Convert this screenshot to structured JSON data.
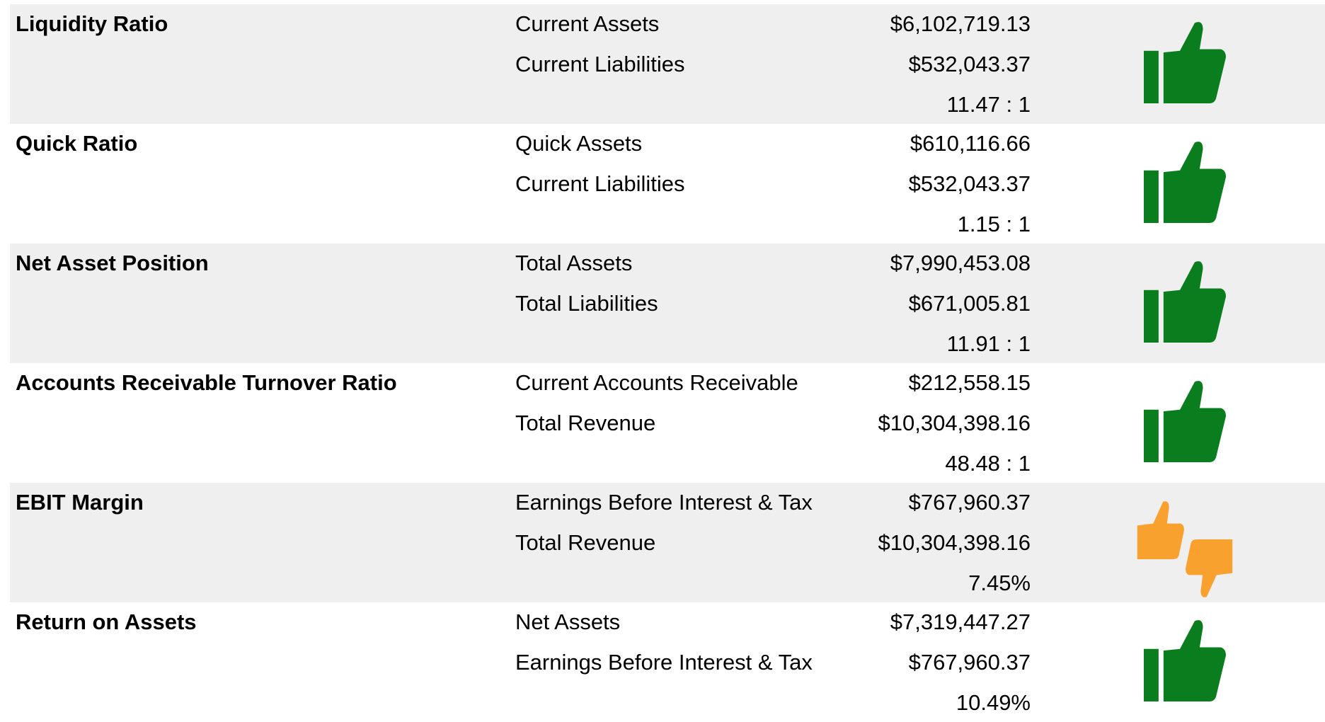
{
  "rows": [
    {
      "label": "Liquidity Ratio",
      "items": [
        {
          "name": "Current Assets",
          "value": "$6,102,719.13"
        },
        {
          "name": "Current Liabilities",
          "value": "$532,043.37"
        }
      ],
      "result": "11.47 : 1"
    },
    {
      "label": "Quick Ratio",
      "items": [
        {
          "name": "Quick Assets",
          "value": "$610,116.66"
        },
        {
          "name": "Current Liabilities",
          "value": "$532,043.37"
        }
      ],
      "result": "1.15 : 1"
    },
    {
      "label": "Net Asset Position",
      "items": [
        {
          "name": "Total Assets",
          "value": "$7,990,453.08"
        },
        {
          "name": "Total Liabilities",
          "value": "$671,005.81"
        }
      ],
      "result": "11.91 : 1"
    },
    {
      "label": "Accounts Receivable Turnover Ratio",
      "items": [
        {
          "name": "Current Accounts Receivable",
          "value": "$212,558.15"
        },
        {
          "name": "Total Revenue",
          "value": "$10,304,398.16"
        }
      ],
      "result": "48.48 : 1"
    },
    {
      "label": "EBIT Margin",
      "items": [
        {
          "name": "Earnings Before Interest & Tax",
          "value": "$767,960.37"
        },
        {
          "name": "Total Revenue",
          "value": "$10,304,398.16"
        }
      ],
      "result": "7.45%"
    },
    {
      "label": "Return on Assets",
      "items": [
        {
          "name": "Net Assets",
          "value": "$7,319,447.27"
        },
        {
          "name": "Earnings Before Interest & Tax",
          "value": "$767,960.37"
        }
      ],
      "result": "10.49%"
    }
  ]
}
